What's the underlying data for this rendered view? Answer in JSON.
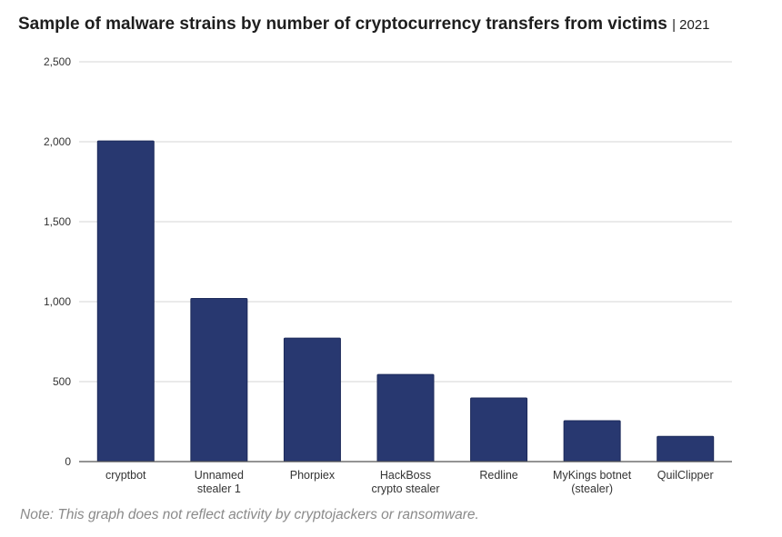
{
  "chart_data": {
    "type": "bar",
    "title": "Sample of malware strains by number of cryptocurrency transfers from victims",
    "subtitle": "| 2021",
    "categories": [
      [
        "cryptbot"
      ],
      [
        "Unnamed",
        "stealer 1"
      ],
      [
        "Phorpiex"
      ],
      [
        "HackBoss",
        "crypto stealer"
      ],
      [
        "Redline"
      ],
      [
        "MyKings botnet",
        "(stealer)"
      ],
      [
        "QuilClipper"
      ]
    ],
    "values": [
      2005,
      1020,
      772,
      545,
      398,
      256,
      158
    ],
    "xlabel": "",
    "ylabel": "",
    "ylim": [
      0,
      2500
    ],
    "yticks": [
      0,
      500,
      1000,
      1500,
      2000,
      2500
    ],
    "ytick_labels": [
      "0",
      "500",
      "1,000",
      "1,500",
      "2,000",
      "2,500"
    ],
    "grid": true,
    "bar_color": "#283870",
    "note": "Note: This graph does not reflect activity by cryptojackers or ransomware."
  }
}
